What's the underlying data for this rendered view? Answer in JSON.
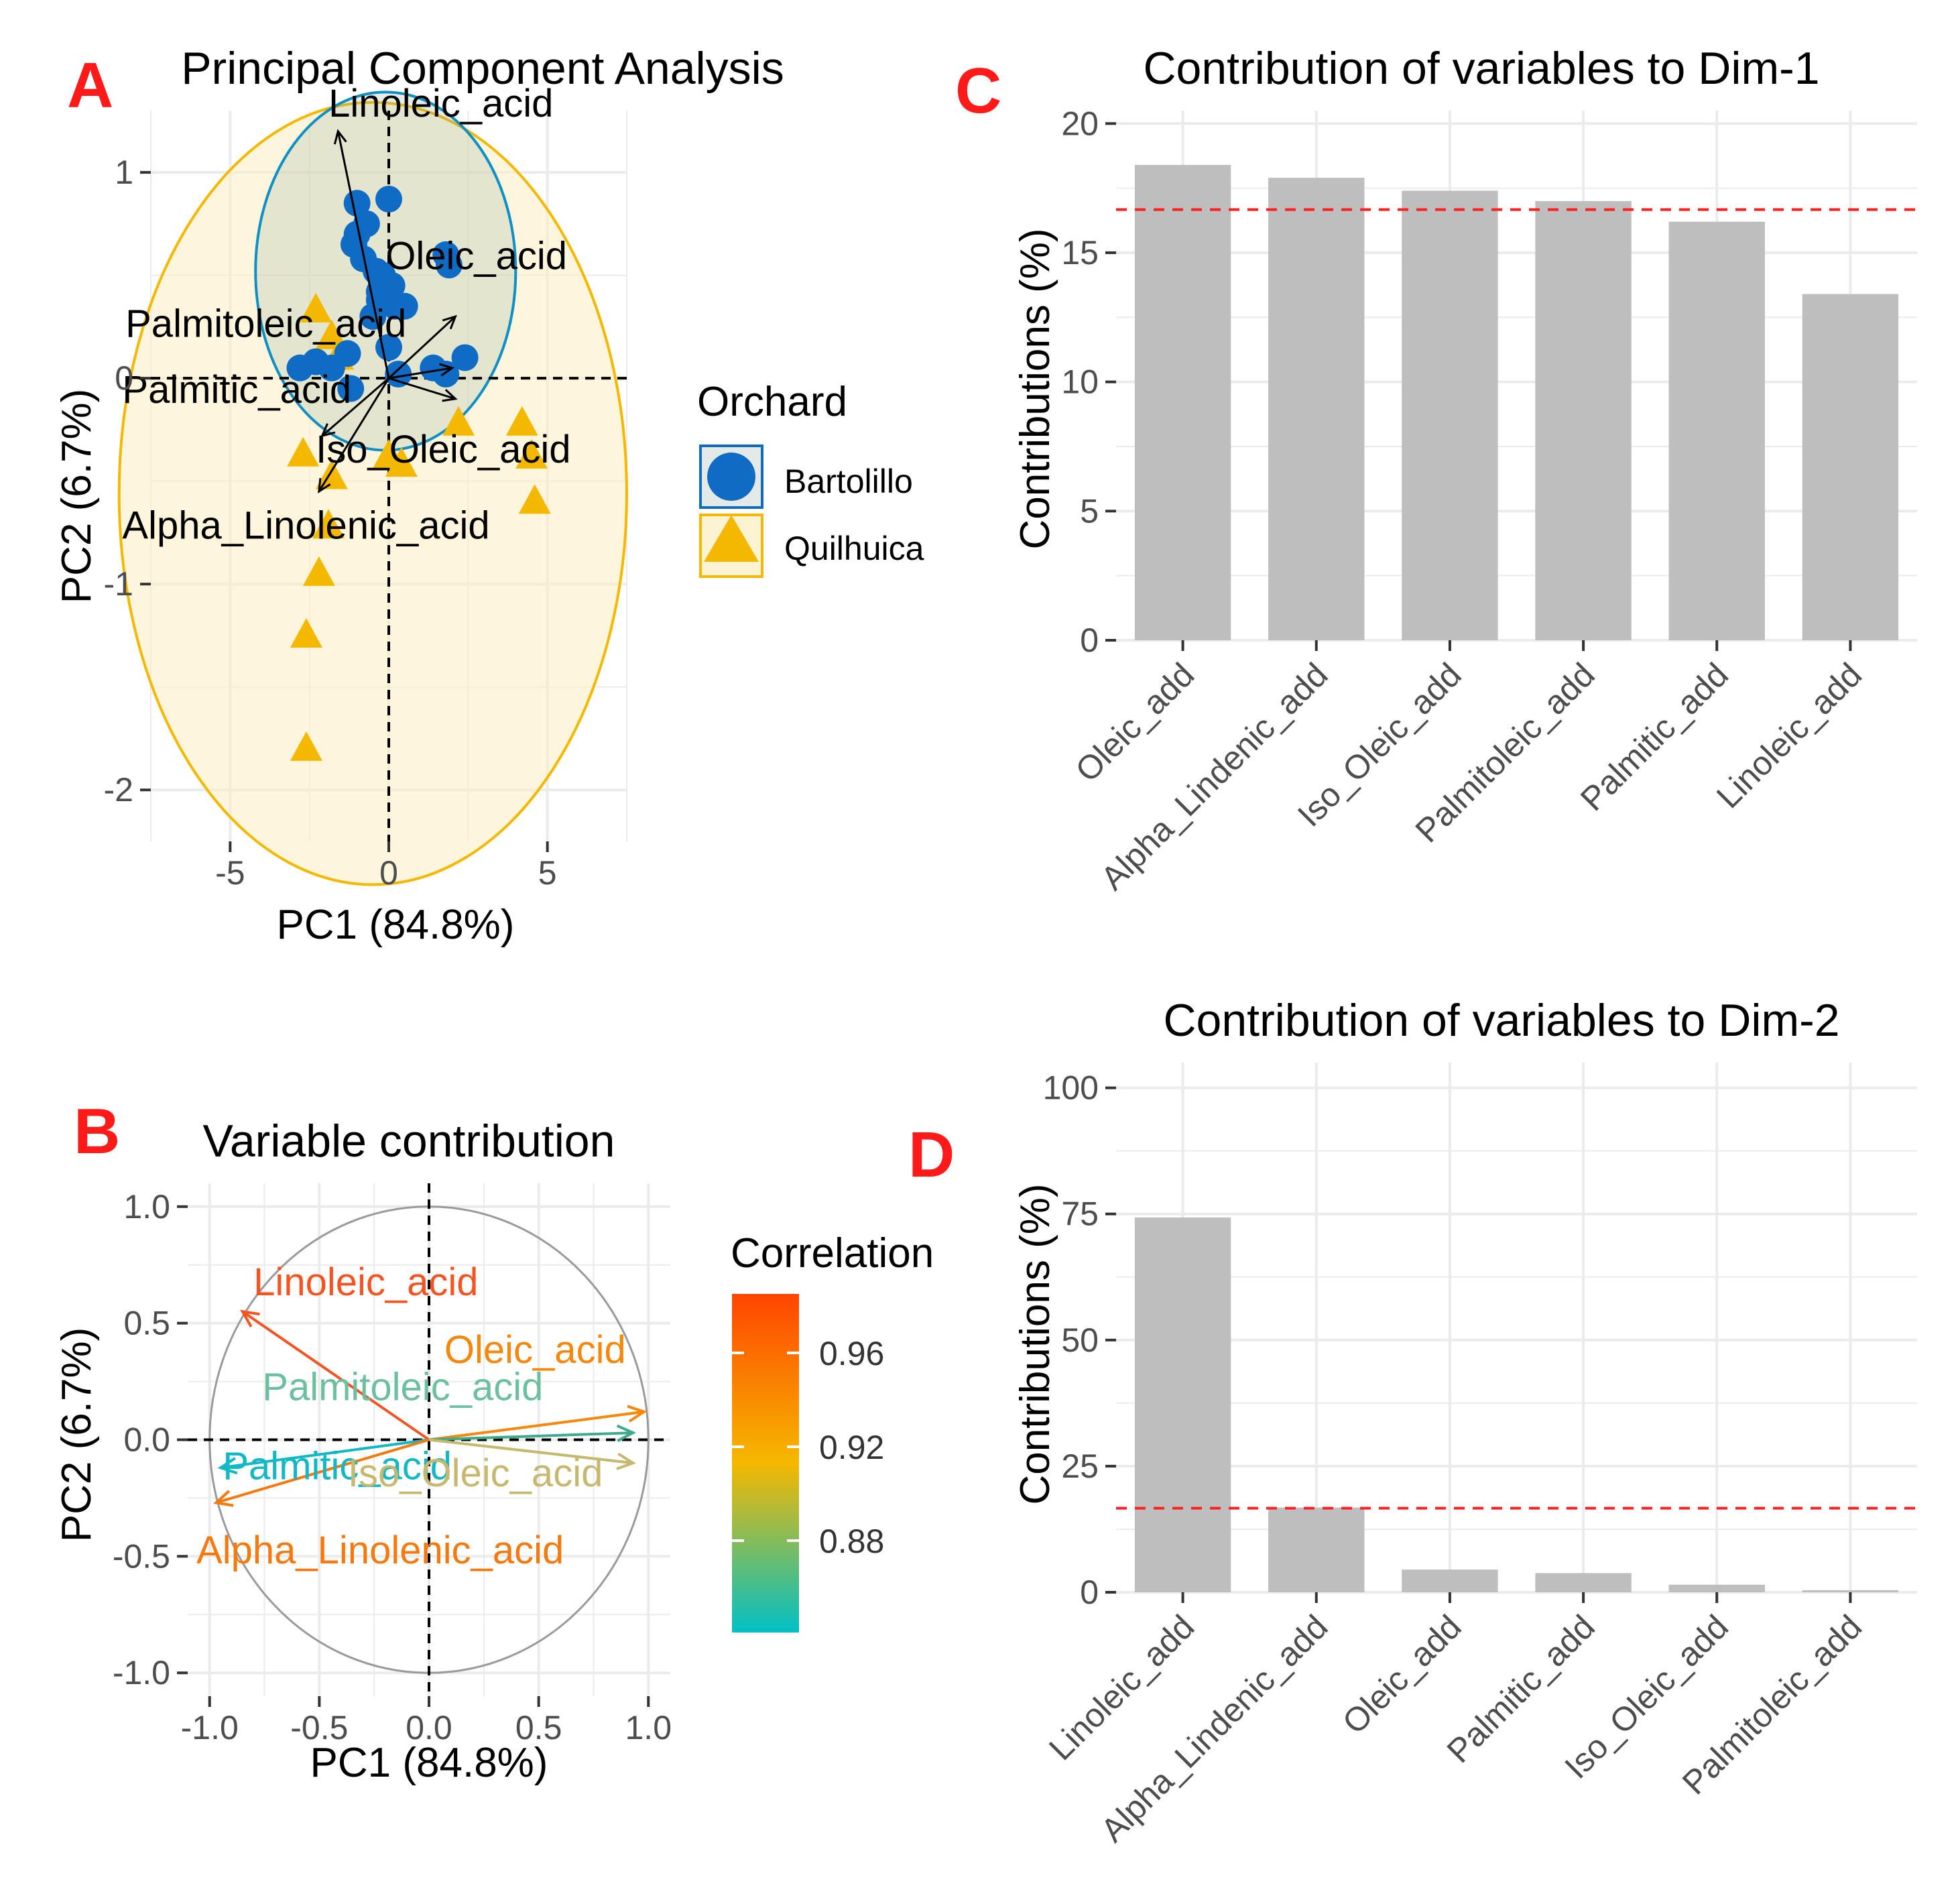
{
  "panel_letters": {
    "a": "A",
    "b": "B",
    "c": "C",
    "d": "D"
  },
  "colors": {
    "panel_letter": "#ff1a1a",
    "bartolillo": "#0f6bc3",
    "quilhuica": "#f5b800",
    "ellipse_b_fill": "#8aa89b",
    "ellipse_q_fill": "#fbeec1",
    "grid": "#ebebeb",
    "bar": "#bebebe",
    "ref_line": "#ff2020",
    "corr_low": "#00c0c5",
    "corr_mid": "#f5b800",
    "corr_high": "#ff4500"
  },
  "chart_data": [
    {
      "id": "A",
      "type": "scatter",
      "title": "Principal Component Analysis",
      "xlabel": "PC1 (84.8%)",
      "ylabel": "PC2 (6.7%)",
      "xlim": [
        -7.5,
        7.5
      ],
      "ylim": [
        -2.25,
        1.3
      ],
      "xticks": [
        -5,
        0,
        5
      ],
      "xtick_labels": [
        "-5",
        "0",
        "5"
      ],
      "yticks": [
        -2,
        -1,
        0,
        1
      ],
      "ytick_labels": [
        "-2",
        "-1",
        "0",
        "1"
      ],
      "legend_title": "Orchard",
      "series": [
        {
          "name": "Bartolillo",
          "marker": "circle",
          "points": [
            [
              -1.0,
              0.85
            ],
            [
              0.0,
              0.87
            ],
            [
              -0.7,
              0.75
            ],
            [
              -1.0,
              0.7
            ],
            [
              -1.1,
              0.65
            ],
            [
              -0.8,
              0.58
            ],
            [
              -0.4,
              0.52
            ],
            [
              1.8,
              0.6
            ],
            [
              1.9,
              0.55
            ],
            [
              -0.2,
              0.5
            ],
            [
              0.1,
              0.45
            ],
            [
              -0.3,
              0.42
            ],
            [
              0.2,
              0.35
            ],
            [
              -0.5,
              0.3
            ],
            [
              -0.3,
              0.38
            ],
            [
              0.5,
              0.35
            ],
            [
              -2.8,
              0.05
            ],
            [
              -2.3,
              0.08
            ],
            [
              -1.8,
              0.05
            ],
            [
              -1.3,
              0.12
            ],
            [
              0.0,
              0.15
            ],
            [
              0.3,
              0.02
            ],
            [
              1.4,
              0.05
            ],
            [
              1.8,
              0.02
            ],
            [
              2.4,
              0.1
            ],
            [
              -1.2,
              -0.05
            ]
          ]
        },
        {
          "name": "Quilhuica",
          "marker": "triangle",
          "points": [
            [
              -2.3,
              0.33
            ],
            [
              -1.8,
              0.2
            ],
            [
              -1.6,
              0.1
            ],
            [
              2.2,
              -0.22
            ],
            [
              4.2,
              -0.22
            ],
            [
              4.5,
              -0.38
            ],
            [
              -2.7,
              -0.37
            ],
            [
              0.0,
              -0.38
            ],
            [
              0.4,
              -0.42
            ],
            [
              -1.8,
              -0.48
            ],
            [
              4.6,
              -0.6
            ],
            [
              -1.9,
              -0.72
            ],
            [
              -2.2,
              -0.95
            ],
            [
              -2.6,
              -1.25
            ],
            [
              -2.6,
              -1.8
            ]
          ]
        }
      ],
      "ellipses": [
        {
          "group": "Bartolillo",
          "cx": -0.1,
          "cy": 0.52,
          "rx": 4.1,
          "ry": 0.87
        },
        {
          "group": "Quilhuica",
          "cx": -0.5,
          "cy": -0.56,
          "rx": 8.0,
          "ry": 1.9
        }
      ],
      "arrows": [
        {
          "label": "Linoleic_acid",
          "x": -1.6,
          "y": 1.2
        },
        {
          "label": "Oleic_acid",
          "x": 2.1,
          "y": 0.3
        },
        {
          "label": "Palmitoleic_acid",
          "x": 2.0,
          "y": 0.05
        },
        {
          "label": "Palmitic_acid",
          "x": -2.1,
          "y": -0.28
        },
        {
          "label": "Iso_Oleic_acid",
          "x": 2.1,
          "y": -0.1
        },
        {
          "label": "Alpha_Linolenic_acid",
          "x": -2.2,
          "y": -0.55
        }
      ],
      "labels": [
        {
          "text": "Linoleic_acid",
          "x": -1.9,
          "y": 1.27
        },
        {
          "text": "Oleic_acid",
          "x": -0.1,
          "y": 0.53
        },
        {
          "text": "Palmitoleic_acid",
          "x": -8.3,
          "y": 0.2
        },
        {
          "text": "Palmitic_acid",
          "x": -8.4,
          "y": -0.12
        },
        {
          "text": "Iso_Oleic_acid",
          "x": -2.3,
          "y": -0.41
        },
        {
          "text": "Alpha_Linolenic_acid",
          "x": -8.4,
          "y": -0.78
        }
      ]
    },
    {
      "id": "B",
      "type": "scatter",
      "title": "Variable contribution",
      "xlabel": "PC1 (84.8%)",
      "ylabel": "PC2 (6.7%)",
      "xlim": [
        -1.1,
        1.1
      ],
      "ylim": [
        -1.1,
        1.1
      ],
      "xticks": [
        -1.0,
        -0.5,
        0.0,
        0.5,
        1.0
      ],
      "xtick_labels": [
        "-1.0",
        "-0.5",
        "0.0",
        "0.5",
        "1.0"
      ],
      "yticks": [
        -1.0,
        -0.5,
        0.0,
        0.5,
        1.0
      ],
      "ytick_labels": [
        "-1.0",
        "-0.5",
        "0.0",
        "0.5",
        "1.0"
      ],
      "legend_title": "Correlation",
      "colorbar_ticks": [
        "0.96",
        "0.92",
        "0.88"
      ],
      "arrows": [
        {
          "label": "Linoleic_acid",
          "x": -0.85,
          "y": 0.55,
          "color": "#f45322"
        },
        {
          "label": "Oleic_acid",
          "x": 0.98,
          "y": 0.12,
          "color": "#f5870a"
        },
        {
          "label": "Palmitoleic_acid",
          "x": 0.93,
          "y": 0.03,
          "color": "#3fa98e"
        },
        {
          "label": "Palmitic_acid",
          "x": -0.95,
          "y": -0.12,
          "color": "#13b8c5"
        },
        {
          "label": "Iso_Oleic_acid",
          "x": 0.93,
          "y": -0.1,
          "color": "#c7b870"
        },
        {
          "label": "Alpha_Linolenic_acid",
          "x": -0.97,
          "y": -0.27,
          "color": "#f5790f"
        }
      ],
      "labels": [
        {
          "text": "Linoleic_acid",
          "x": -0.8,
          "y": 0.62,
          "color": "#f45322"
        },
        {
          "text": "Oleic_acid",
          "x": 0.07,
          "y": 0.33,
          "color": "#f5870a"
        },
        {
          "text": "Palmitoleic_acid",
          "x": -0.76,
          "y": 0.17,
          "color": "#6cbf9f"
        },
        {
          "text": "Palmitic_acid",
          "x": -0.94,
          "y": -0.17,
          "color": "#13b8c5"
        },
        {
          "text": "Iso_Oleic_acid",
          "x": -0.37,
          "y": -0.2,
          "color": "#c7b870"
        },
        {
          "text": "Alpha_Linolenic_acid",
          "x": -1.06,
          "y": -0.53,
          "color": "#f5790f"
        }
      ]
    },
    {
      "id": "C",
      "type": "bar",
      "title": "Contribution of variables to Dim-1",
      "xlabel": "",
      "ylabel": "Contributions (%)",
      "ylim": [
        0,
        20.5
      ],
      "yticks": [
        0,
        5,
        10,
        15,
        20
      ],
      "ytick_labels": [
        "0",
        "5",
        "10",
        "15",
        "20"
      ],
      "categories": [
        "Oleic_add",
        "Alpha_Lindenic_add",
        "Iso_Oleic_add",
        "Palmitoleic_add",
        "Palmitic_add",
        "Linoleic_add"
      ],
      "values": [
        18.4,
        17.9,
        17.4,
        17.0,
        16.2,
        13.4
      ],
      "reference_line": 16.67
    },
    {
      "id": "D",
      "type": "bar",
      "title": "Contribution of variables to Dim-2",
      "xlabel": "",
      "ylabel": "Contributions (%)",
      "ylim": [
        0,
        105
      ],
      "yticks": [
        0,
        25,
        50,
        75,
        100
      ],
      "ytick_labels": [
        "0",
        "25",
        "50",
        "75",
        "100"
      ],
      "categories": [
        "Linoleic_add",
        "Alpha_Lindenic_add",
        "Oleic_add",
        "Palmitic_add",
        "Iso_Oleic_add",
        "Palmitoleic_add"
      ],
      "values": [
        74.3,
        16.8,
        4.5,
        3.8,
        1.5,
        0.4
      ],
      "reference_line": 16.67
    }
  ]
}
